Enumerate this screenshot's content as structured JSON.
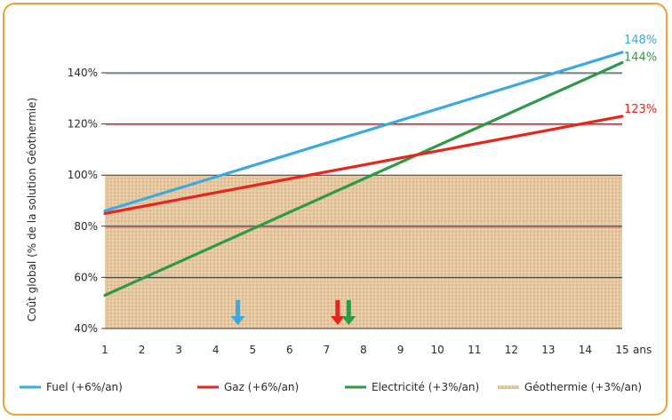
{
  "chart_data": {
    "type": "line",
    "ylabel": "Coût global (% de la solution Géothermie)",
    "xunit": "ans",
    "x": [
      1,
      2,
      3,
      4,
      5,
      6,
      7,
      8,
      9,
      10,
      11,
      12,
      13,
      14,
      15
    ],
    "xlim": [
      1,
      15
    ],
    "ylim": [
      40,
      150
    ],
    "yticks": [
      40,
      60,
      80,
      100,
      120,
      140
    ],
    "ytick_labels": [
      "40%",
      "60%",
      "80%",
      "100%",
      "120%",
      "140%"
    ],
    "grid": true,
    "legend_position": "bottom",
    "series": [
      {
        "name": "Fuel (+6%/an)",
        "color": "#3aaae0",
        "x": [
          1,
          15
        ],
        "y": [
          86,
          148
        ],
        "end_label": "148%"
      },
      {
        "name": "Gaz (+6%/an)",
        "color": "#e8251c",
        "x": [
          1,
          15
        ],
        "y": [
          85,
          123
        ],
        "end_label": "123%"
      },
      {
        "name": "Electricité (+3%/an)",
        "color": "#2e9a48",
        "x": [
          1,
          15
        ],
        "y": [
          53,
          144
        ],
        "end_label": "144%"
      },
      {
        "name": "Géothermie (+3%/an)",
        "color": "#d9b98a",
        "y_from": 40,
        "y_to": 100
      }
    ],
    "annotations": [
      {
        "type": "arrow-down",
        "x": 4.6,
        "color": "#3aaae0"
      },
      {
        "type": "arrow-down",
        "x": 7.3,
        "color": "#e8251c"
      },
      {
        "type": "arrow-down",
        "x": 7.6,
        "color": "#2e9a48"
      }
    ],
    "gridline_colors": {
      "140": "#3aaae0",
      "120": "#e8251c",
      "80": "#e8251c",
      "60": "#3aaae0"
    }
  }
}
